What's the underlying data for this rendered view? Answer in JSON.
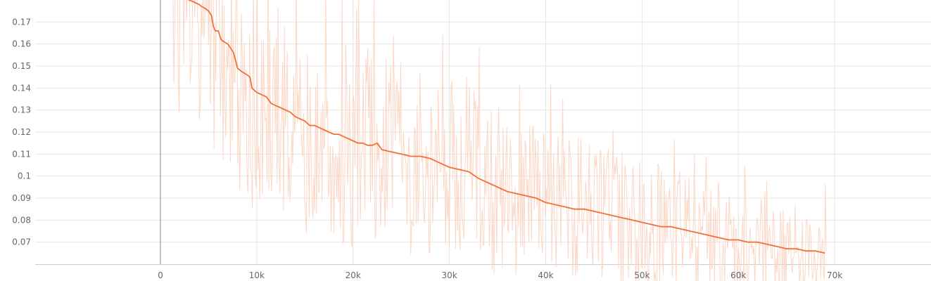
{
  "chart_data": {
    "type": "line",
    "title": "",
    "xlabel": "",
    "ylabel": "",
    "xlim": [
      -13000,
      80000
    ],
    "ylim": [
      0.06,
      0.18
    ],
    "x_ticks": [
      0,
      10000,
      20000,
      30000,
      40000,
      50000,
      60000,
      70000
    ],
    "x_tick_labels": [
      "0",
      "10k",
      "20k",
      "30k",
      "40k",
      "50k",
      "60k",
      "70k"
    ],
    "y_ticks": [
      0.07,
      0.08,
      0.09,
      0.1,
      0.11,
      0.12,
      0.13,
      0.14,
      0.15,
      0.16,
      0.17
    ],
    "y_tick_labels": [
      "0.07",
      "0.08",
      "0.09",
      "0.1",
      "0.11",
      "0.12",
      "0.13",
      "0.14",
      "0.15",
      "0.16",
      "0.17"
    ],
    "grid": true,
    "colors": {
      "smoothed": "#f0703a",
      "raw": "#fbd3c0",
      "grid": "#e6e6e6",
      "zero_line": "#888888"
    },
    "series": [
      {
        "x": [
          2000,
          2500,
          3000,
          3500,
          4000,
          4300,
          4700,
          5000,
          5300,
          5500,
          5700,
          6000,
          6300,
          6600,
          7000,
          7300,
          7600,
          8000,
          8300,
          8600,
          9000,
          9300,
          9500,
          10000,
          10500,
          11000,
          11500,
          12000,
          12500,
          13000,
          13500,
          14000,
          14500,
          15000,
          15500,
          16000,
          16500,
          17000,
          17500,
          18000,
          18500,
          19000,
          19500,
          20000,
          20500,
          21000,
          21500,
          22000,
          22500,
          23000,
          24000,
          25000,
          26000,
          27000,
          28000,
          29000,
          30000,
          31000,
          32000,
          33000,
          34000,
          35000,
          36000,
          37000,
          38000,
          39000,
          40000,
          41000,
          42000,
          43000,
          44000,
          45000,
          46000,
          47000,
          48000,
          49000,
          50000,
          51000,
          52000,
          53000,
          54000,
          55000,
          56000,
          57000,
          58000,
          59000,
          60000,
          61000,
          62000,
          63000,
          64000,
          65000,
          66000,
          67000,
          68000,
          69000
        ],
        "y": [
          0.183,
          0.181,
          0.18,
          0.179,
          0.178,
          0.177,
          0.176,
          0.175,
          0.173,
          0.168,
          0.166,
          0.166,
          0.162,
          0.161,
          0.16,
          0.158,
          0.156,
          0.149,
          0.148,
          0.147,
          0.146,
          0.145,
          0.14,
          0.138,
          0.137,
          0.136,
          0.133,
          0.132,
          0.131,
          0.13,
          0.129,
          0.127,
          0.126,
          0.125,
          0.123,
          0.123,
          0.122,
          0.121,
          0.12,
          0.119,
          0.119,
          0.118,
          0.117,
          0.116,
          0.115,
          0.115,
          0.114,
          0.114,
          0.115,
          0.112,
          0.111,
          0.11,
          0.109,
          0.109,
          0.108,
          0.106,
          0.104,
          0.103,
          0.102,
          0.099,
          0.097,
          0.095,
          0.093,
          0.092,
          0.091,
          0.09,
          0.088,
          0.087,
          0.086,
          0.085,
          0.085,
          0.084,
          0.083,
          0.082,
          0.081,
          0.08,
          0.079,
          0.078,
          0.077,
          0.077,
          0.076,
          0.075,
          0.074,
          0.073,
          0.072,
          0.071,
          0.071,
          0.07,
          0.07,
          0.069,
          0.068,
          0.067,
          0.067,
          0.066,
          0.066,
          0.065
        ]
      }
    ]
  }
}
